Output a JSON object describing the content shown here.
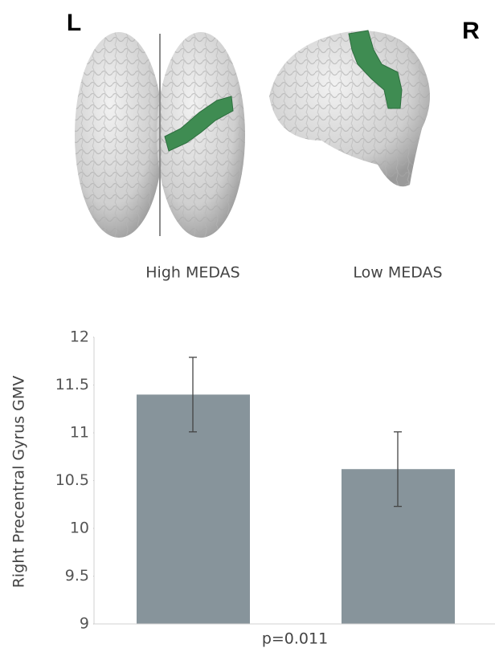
{
  "chart_data": {
    "type": "bar",
    "hemisphere_labels": [
      "L",
      "R"
    ],
    "categories": [
      "High MEDAS",
      "Low MEDAS"
    ],
    "values": [
      11.4,
      10.62
    ],
    "errors": [
      0.39,
      0.39
    ],
    "color": "#87949b",
    "ylabel": "Right Precentral Gyrus GMV",
    "annotation": "p=0.011",
    "ylim": [
      9,
      12
    ],
    "yticks": [
      9,
      9.5,
      10,
      10.5,
      11,
      11.5,
      12
    ]
  }
}
